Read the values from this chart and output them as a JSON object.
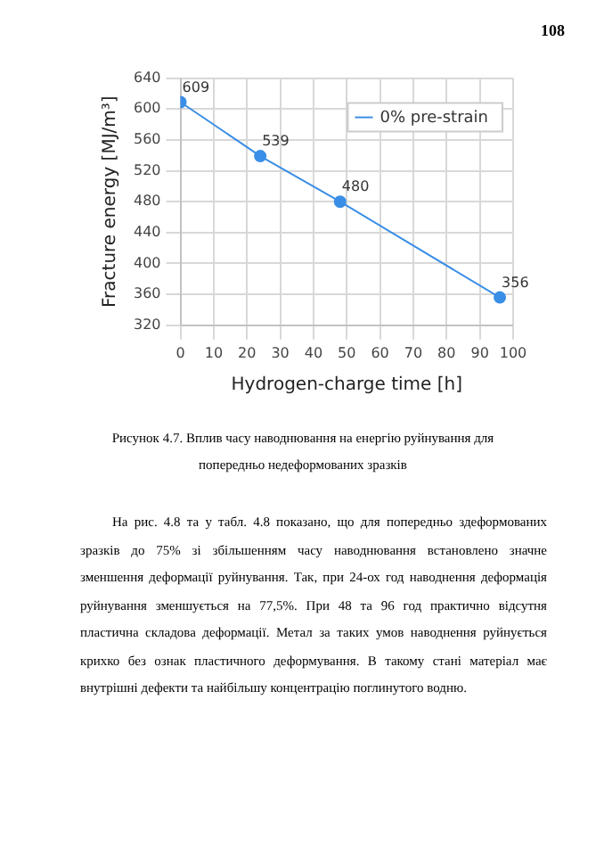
{
  "chart_data": {
    "type": "line",
    "xlabel": "Hydrogen-charge time [h]",
    "ylabel": "Fracture energy [MJ/m³]",
    "x": [
      0,
      24,
      48,
      96
    ],
    "series": [
      {
        "name": "0% pre-strain",
        "color": "#3a8ee6",
        "values": [
          609,
          539,
          480,
          356
        ]
      }
    ],
    "xlim": [
      0,
      100
    ],
    "xticks": [
      0,
      10,
      20,
      30,
      40,
      50,
      60,
      70,
      80,
      90,
      100
    ],
    "ylim": [
      320,
      640
    ],
    "yticks": [
      320,
      360,
      400,
      440,
      480,
      520,
      560,
      600,
      640
    ],
    "grid": true,
    "legend": "top right",
    "marker": "circle",
    "line_style": "solid",
    "data_labels": true,
    "annotations": [
      "108",
      "Рисунок 4.7. Вплив часу наводнювання на енергію руйнування для попередньо недеформованих зразків",
      "На рис. 4.8 та у табл. 4.8 показано, що для попередньо здеформованих зразків до 75% зі збільшенням часу наводнювання встановлено значне зменшення деформації руйнування. Так, при 24-ох год наводнення деформація руйнування зменшується на 77,5%. При 48 та 96 год практично відсутня пластична складова деформації. Метал за таких умов наводнення руйнується крихко без ознак пластичного деформування. В такому стані матеріал має внутрішні дефекти та найбільшу концентрацію поглинутого водню."
    ]
  }
}
